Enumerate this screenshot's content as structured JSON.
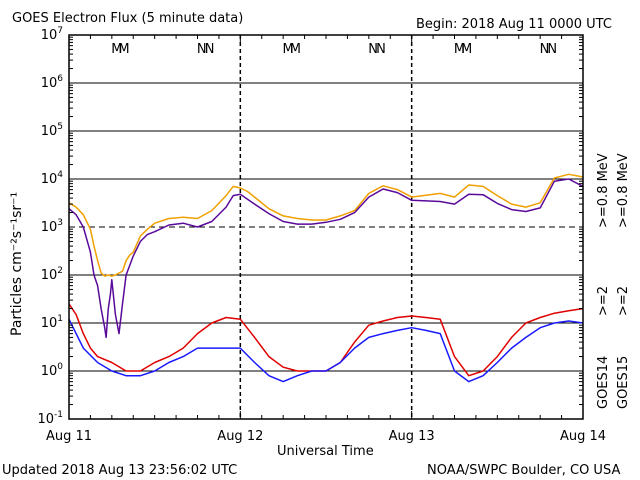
{
  "chart_data": {
    "type": "line",
    "title": "GOES Electron Flux (5 minute data)",
    "begin_label": "Begin: 2018 Aug 11 0000 UTC",
    "xlabel": "Universal Time",
    "ylabel": "Particles cm⁻²s⁻¹sr⁻¹",
    "updated": "Updated 2018 Aug 13 23:56:02 UTC",
    "credit": "NOAA/SWPC Boulder, CO USA",
    "x_tick_labels": [
      "Aug 11",
      "Aug 12",
      "Aug 13",
      "Aug 14"
    ],
    "x_range_hours": [
      0,
      72
    ],
    "y_scale": "log",
    "ylim": [
      0.1,
      10000000
    ],
    "y_tick_exponents": [
      -1,
      0,
      1,
      2,
      3,
      4,
      5,
      6,
      7
    ],
    "threshold_level": 1000,
    "markers": [
      {
        "text": "M",
        "hour": 6.7,
        "color": "#1a1aff"
      },
      {
        "text": "M",
        "hour": 7.7,
        "color": "#e00000"
      },
      {
        "text": "N",
        "hour": 18.6,
        "color": "#1a1aff"
      },
      {
        "text": "N",
        "hour": 19.7,
        "color": "#e00000"
      },
      {
        "text": "M",
        "hour": 30.7,
        "color": "#1a1aff"
      },
      {
        "text": "M",
        "hour": 31.7,
        "color": "#e00000"
      },
      {
        "text": "N",
        "hour": 42.6,
        "color": "#1a1aff"
      },
      {
        "text": "N",
        "hour": 43.7,
        "color": "#e00000"
      },
      {
        "text": "M",
        "hour": 54.7,
        "color": "#1a1aff"
      },
      {
        "text": "M",
        "hour": 55.7,
        "color": "#e00000"
      },
      {
        "text": "N",
        "hour": 66.6,
        "color": "#1a1aff"
      },
      {
        "text": "N",
        "hour": 67.7,
        "color": "#e00000"
      }
    ],
    "right_legend": [
      {
        "text": ">=0.8 MeV",
        "color": "#f0a000"
      },
      {
        "text": ">=0.8 MeV",
        "color": "#5a0a9a"
      },
      {
        "text": ">=2",
        "color": "#e00000"
      },
      {
        "text": ">=2",
        "color": "#1a1aff"
      },
      {
        "text": "GOES15",
        "color": "#000000"
      },
      {
        "text": "GOES14",
        "color": "#000000"
      }
    ],
    "series": [
      {
        "name": "GOES15 >=0.8 MeV",
        "color": "#f0a000",
        "x": [
          0,
          1,
          2,
          3,
          3.5,
          4,
          4.5,
          5,
          5.5,
          6,
          6.5,
          7,
          7.5,
          8,
          8.5,
          9,
          10,
          11,
          12,
          14,
          16,
          18,
          20,
          22,
          23,
          24,
          25,
          26,
          28,
          30,
          32,
          34,
          36,
          38,
          40,
          42,
          44,
          46,
          48,
          50,
          52,
          54,
          56,
          58,
          60,
          62,
          64,
          66,
          68,
          70,
          72
        ],
        "y": [
          3200,
          2600,
          1800,
          900,
          400,
          200,
          110,
          95,
          100,
          95,
          100,
          110,
          120,
          200,
          260,
          300,
          650,
          900,
          1200,
          1500,
          1600,
          1500,
          2200,
          4500,
          7000,
          6500,
          5500,
          4200,
          2400,
          1700,
          1500,
          1400,
          1400,
          1700,
          2200,
          5000,
          7200,
          6000,
          4200,
          4600,
          5000,
          4200,
          7500,
          7000,
          4500,
          3000,
          2600,
          3200,
          10500,
          12500,
          11000
        ]
      },
      {
        "name": "GOES14 >=0.8 MeV",
        "color": "#5a0a9a",
        "x": [
          0,
          1,
          2,
          3,
          3.5,
          4,
          4.5,
          5,
          5.2,
          5.5,
          5.8,
          6,
          6.5,
          7,
          7.5,
          8,
          9,
          10,
          11,
          12,
          14,
          16,
          18,
          20,
          22,
          23,
          24,
          25,
          26,
          28,
          30,
          32,
          34,
          36,
          38,
          40,
          42,
          44,
          46,
          48,
          50,
          52,
          54,
          56,
          58,
          60,
          62,
          64,
          66,
          68,
          70,
          72
        ],
        "y": [
          2400,
          1800,
          1000,
          300,
          100,
          60,
          20,
          8,
          5,
          20,
          40,
          80,
          15,
          6,
          25,
          100,
          250,
          500,
          700,
          800,
          1100,
          1200,
          1000,
          1300,
          2600,
          4500,
          4800,
          3800,
          3000,
          1900,
          1300,
          1150,
          1150,
          1250,
          1450,
          2000,
          4200,
          6200,
          5200,
          3600,
          3500,
          3400,
          3000,
          4800,
          4700,
          3100,
          2300,
          2100,
          2500,
          9000,
          10000,
          7000
        ]
      },
      {
        "name": "GOES15 >=2",
        "color": "#e00000",
        "x": [
          0,
          1,
          2,
          3,
          4,
          6,
          8,
          10,
          12,
          14,
          16,
          18,
          20,
          22,
          24,
          26,
          28,
          30,
          32,
          34,
          36,
          38,
          40,
          42,
          44,
          46,
          48,
          50,
          52,
          54,
          56,
          58,
          60,
          62,
          64,
          66,
          68,
          70,
          72
        ],
        "y": [
          25,
          15,
          6,
          3,
          2,
          1.5,
          1,
          1,
          1.5,
          2,
          3,
          6,
          10,
          13,
          12,
          5,
          2,
          1.2,
          1,
          1,
          1,
          1.5,
          4,
          9,
          11,
          13,
          14,
          13,
          12,
          2,
          0.8,
          1,
          2,
          5,
          10,
          13,
          16,
          18,
          20
        ]
      },
      {
        "name": "GOES14 >=2",
        "color": "#1a1aff",
        "x": [
          0,
          1,
          2,
          4,
          6,
          8,
          10,
          12,
          14,
          16,
          18,
          20,
          22,
          24,
          26,
          28,
          30,
          32,
          34,
          36,
          38,
          40,
          42,
          44,
          46,
          48,
          50,
          52,
          54,
          56,
          58,
          60,
          62,
          64,
          66,
          68,
          70,
          72
        ],
        "y": [
          12,
          6,
          3,
          1.5,
          1,
          0.8,
          0.8,
          1,
          1.5,
          2,
          3,
          3,
          3,
          3,
          1.5,
          0.8,
          0.6,
          0.8,
          1,
          1,
          1.5,
          3,
          5,
          6,
          7,
          8,
          7,
          6,
          1,
          0.6,
          0.8,
          1.5,
          3,
          5,
          8,
          10,
          11,
          10
        ]
      }
    ]
  }
}
